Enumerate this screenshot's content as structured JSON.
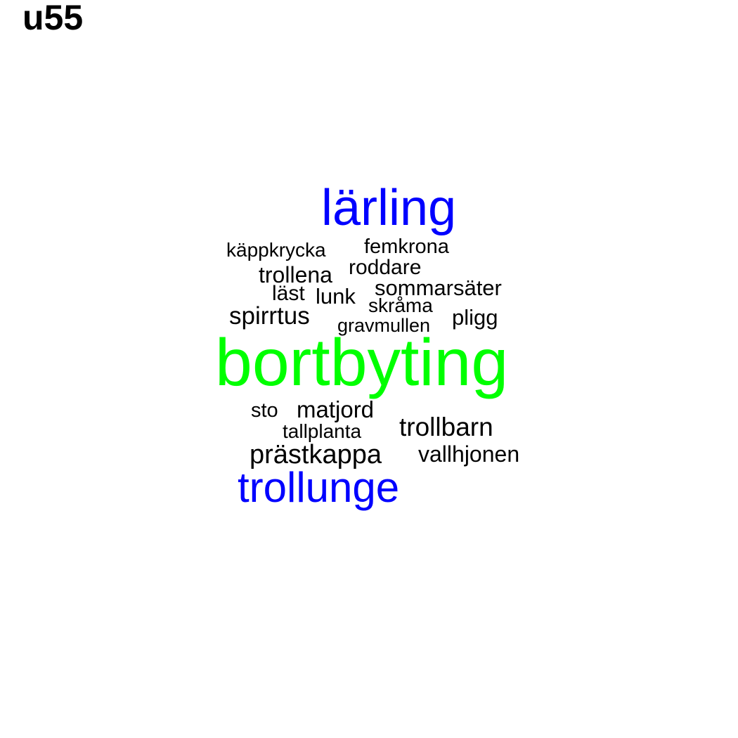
{
  "title": "u55",
  "words": [
    {
      "id": "w-larling",
      "text": "lärling",
      "color": "#0000ff",
      "rank": "large"
    },
    {
      "id": "w-kappkrycka",
      "text": "käppkrycka",
      "color": "#000000",
      "rank": "small"
    },
    {
      "id": "w-femkrona",
      "text": "femkrona",
      "color": "#000000",
      "rank": "small"
    },
    {
      "id": "w-trollena",
      "text": "trollena",
      "color": "#000000",
      "rank": "small"
    },
    {
      "id": "w-roddare",
      "text": "roddare",
      "color": "#000000",
      "rank": "small"
    },
    {
      "id": "w-last",
      "text": "läst",
      "color": "#000000",
      "rank": "small"
    },
    {
      "id": "w-lunk",
      "text": "lunk",
      "color": "#000000",
      "rank": "small"
    },
    {
      "id": "w-sommarsater",
      "text": "sommarsäter",
      "color": "#000000",
      "rank": "small"
    },
    {
      "id": "w-skrama",
      "text": "skråma",
      "color": "#000000",
      "rank": "small"
    },
    {
      "id": "w-spirrtus",
      "text": "spirrtus",
      "color": "#000000",
      "rank": "small"
    },
    {
      "id": "w-pligg",
      "text": "pligg",
      "color": "#000000",
      "rank": "small"
    },
    {
      "id": "w-gravmullen",
      "text": "gravmullen",
      "color": "#000000",
      "rank": "small"
    },
    {
      "id": "w-bortbyting",
      "text": "bortbyting",
      "color": "#00ff00",
      "rank": "largest"
    },
    {
      "id": "w-sto",
      "text": "sto",
      "color": "#000000",
      "rank": "small"
    },
    {
      "id": "w-matjord",
      "text": "matjord",
      "color": "#000000",
      "rank": "small"
    },
    {
      "id": "w-tallplanta",
      "text": "tallplanta",
      "color": "#000000",
      "rank": "small"
    },
    {
      "id": "w-trollbarn",
      "text": "trollbarn",
      "color": "#000000",
      "rank": "small"
    },
    {
      "id": "w-prastkappa",
      "text": "prästkappa",
      "color": "#000000",
      "rank": "small"
    },
    {
      "id": "w-vallhjonen",
      "text": "vallhjonen",
      "color": "#000000",
      "rank": "small"
    },
    {
      "id": "w-trollunge",
      "text": "trollunge",
      "color": "#0000ff",
      "rank": "large"
    }
  ]
}
